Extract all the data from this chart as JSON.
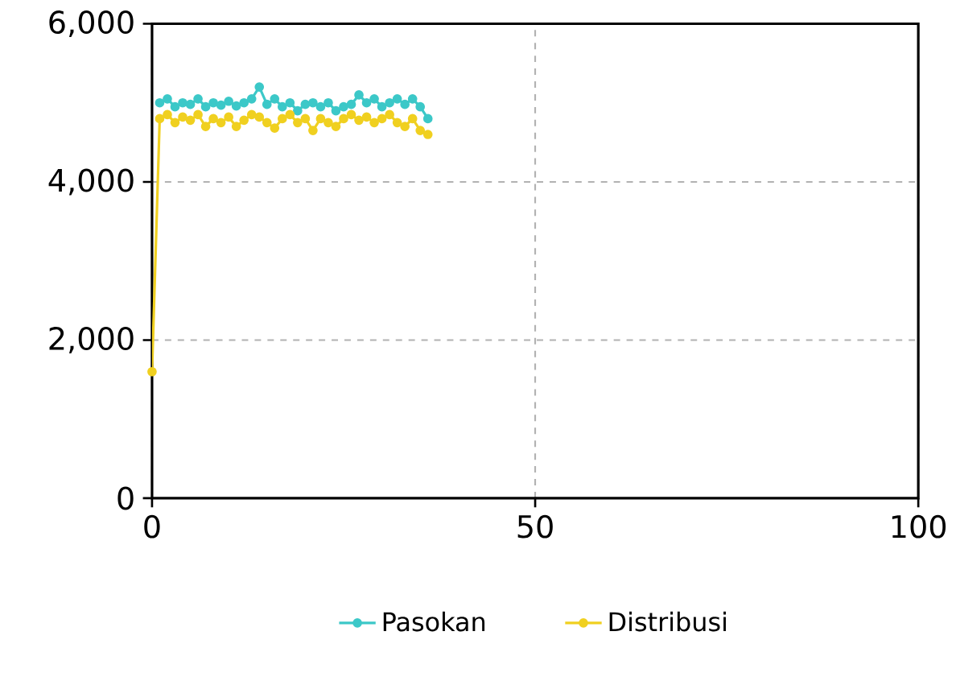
{
  "chart_data": {
    "type": "line",
    "xlim": [
      0,
      100
    ],
    "ylim": [
      0,
      6000
    ],
    "xticks": [
      0,
      50,
      100
    ],
    "yticks": [
      0,
      {
        "value": 2000,
        "label": "2,000"
      },
      {
        "value": 4000,
        "label": "4,000"
      },
      {
        "value": 6000,
        "label": "6,000"
      }
    ],
    "grid": true,
    "legend": "bottom",
    "marker": "circle",
    "series": [
      {
        "name": "Pasokan",
        "color": "#3cc8c8",
        "x": [
          1,
          2,
          3,
          4,
          5,
          6,
          7,
          8,
          9,
          10,
          11,
          12,
          13,
          14,
          15,
          16,
          17,
          18,
          19,
          20,
          21,
          22,
          23,
          24,
          25,
          26,
          27,
          28,
          29,
          30,
          31,
          32,
          33,
          34,
          35,
          36
        ],
        "values": [
          5000,
          5050,
          4950,
          5000,
          4980,
          5050,
          4950,
          5000,
          4970,
          5020,
          4960,
          5000,
          5050,
          5200,
          4980,
          5050,
          4950,
          5000,
          4900,
          4980,
          5000,
          4950,
          5000,
          4900,
          4950,
          4980,
          5100,
          5000,
          5050,
          4950,
          5000,
          5050,
          4980,
          5050,
          4950,
          4800
        ]
      },
      {
        "name": "Distribusi",
        "color": "#f0d020",
        "x": [
          0,
          1,
          2,
          3,
          4,
          5,
          6,
          7,
          8,
          9,
          10,
          11,
          12,
          13,
          14,
          15,
          16,
          17,
          18,
          19,
          20,
          21,
          22,
          23,
          24,
          25,
          26,
          27,
          28,
          29,
          30,
          31,
          32,
          33,
          34,
          35,
          36
        ],
        "values": [
          1600,
          4800,
          4850,
          4750,
          4820,
          4780,
          4850,
          4700,
          4800,
          4750,
          4820,
          4700,
          4780,
          4850,
          4820,
          4750,
          4680,
          4800,
          4850,
          4750,
          4800,
          4650,
          4800,
          4750,
          4700,
          4800,
          4850,
          4780,
          4820,
          4750,
          4800,
          4850,
          4750,
          4700,
          4800,
          4650,
          4600
        ]
      }
    ]
  }
}
